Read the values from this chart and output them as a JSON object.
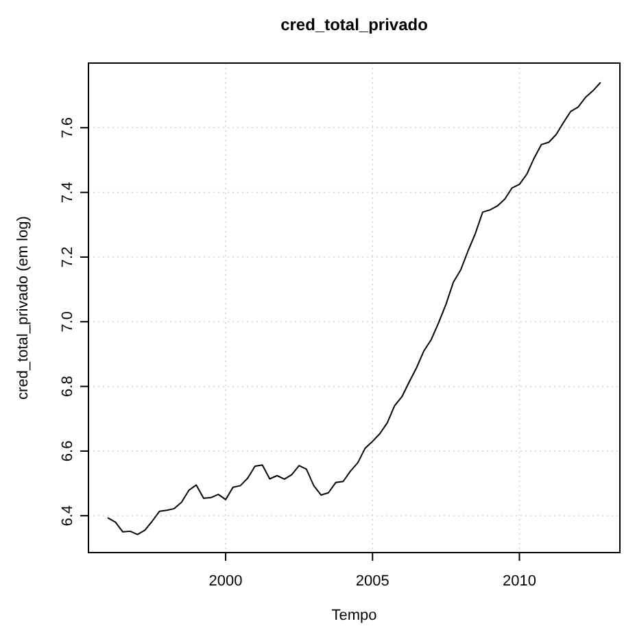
{
  "chart_data": {
    "type": "line",
    "title": "cred_total_privado",
    "xlabel": "Tempo",
    "ylabel": "cred_total_privado (em log)",
    "x": [
      1996,
      1996.25,
      1996.5,
      1996.75,
      1997,
      1997.25,
      1997.5,
      1997.75,
      1998,
      1998.25,
      1998.5,
      1998.75,
      1999,
      1999.25,
      1999.5,
      1999.75,
      2000,
      2000.25,
      2000.5,
      2000.75,
      2001,
      2001.25,
      2001.5,
      2001.75,
      2002,
      2002.25,
      2002.5,
      2002.75,
      2003,
      2003.25,
      2003.5,
      2003.75,
      2004,
      2004.25,
      2004.5,
      2004.75,
      2005,
      2005.25,
      2005.5,
      2005.75,
      2006,
      2006.25,
      2006.5,
      2006.75,
      2007,
      2007.25,
      2007.5,
      2007.75,
      2008,
      2008.25,
      2008.5,
      2008.75,
      2009,
      2009.25,
      2009.5,
      2009.75,
      2010,
      2010.25,
      2010.5,
      2010.75,
      2011,
      2011.25,
      2011.5,
      2011.75,
      2012,
      2012.25,
      2012.5,
      2012.75
    ],
    "series": [
      {
        "color": "#000000",
        "values": [
          6.393,
          6.38,
          6.35,
          6.352,
          6.342,
          6.355,
          6.383,
          6.414,
          6.417,
          6.422,
          6.442,
          6.479,
          6.495,
          6.454,
          6.456,
          6.466,
          6.45,
          6.488,
          6.493,
          6.516,
          6.553,
          6.557,
          6.514,
          6.524,
          6.513,
          6.527,
          6.555,
          6.544,
          6.493,
          6.464,
          6.471,
          6.503,
          6.506,
          6.538,
          6.564,
          6.609,
          6.63,
          6.654,
          6.687,
          6.74,
          6.768,
          6.814,
          6.858,
          6.91,
          6.945,
          6.997,
          7.054,
          7.122,
          7.16,
          7.219,
          7.273,
          7.339,
          7.346,
          7.358,
          7.379,
          7.414,
          7.425,
          7.456,
          7.506,
          7.548,
          7.555,
          7.579,
          7.616,
          7.651,
          7.664,
          7.694,
          7.714,
          7.739
        ]
      }
    ],
    "xlim": [
      1995.33,
      2013.42
    ],
    "ylim": [
      6.286,
      7.8
    ],
    "xticks": [
      2000,
      2005,
      2010
    ],
    "yticks": [
      6.4,
      6.6,
      6.8,
      {
        "value": 7,
        "label": "7.0"
      },
      7.2,
      7.4,
      7.6
    ],
    "grid": true,
    "line_style": "solid",
    "marker": "none"
  }
}
